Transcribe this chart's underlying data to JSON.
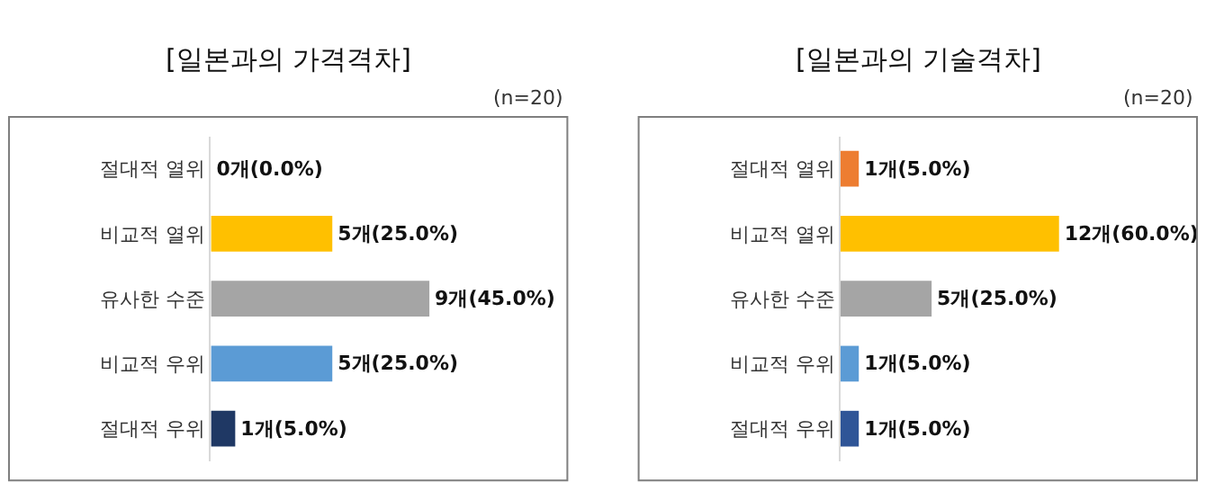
{
  "chart_data": [
    {
      "type": "bar",
      "orientation": "horizontal",
      "title": "[일본과의 가격격차]",
      "annotations": [
        "(n=20)"
      ],
      "categories": [
        "절대적 열위",
        "비교적 열위",
        "유사한 수준",
        "비교적 우위",
        "절대적 우위"
      ],
      "values": [
        0,
        5,
        9,
        5,
        1
      ],
      "colors": [
        "#ffffff",
        "#ffc000",
        "#a5a5a5",
        "#5b9bd5",
        "#1f3864"
      ],
      "value_labels": [
        "0개(0.0%)",
        "5개(25.0%)",
        "9개(45.0%)",
        "5개(25.0%)",
        "1개(5.0%)"
      ],
      "tick_labels": "y"
    },
    {
      "type": "bar",
      "orientation": "horizontal",
      "title": "[일본과의 기술격차]",
      "annotations": [
        "(n=20)"
      ],
      "categories": [
        "절대적 열위",
        "비교적 열위",
        "유사한 수준",
        "비교적 우위",
        "절대적 우위"
      ],
      "values": [
        1,
        12,
        5,
        1,
        1
      ],
      "colors": [
        "#ed7d31",
        "#ffc000",
        "#a5a5a5",
        "#5b9bd5",
        "#2f5597"
      ],
      "value_labels": [
        "1개(5.0%)",
        "12개(60.0%)",
        "5개(25.0%)",
        "1개(5.0%)",
        "1개(5.0%)"
      ],
      "tick_labels": "y"
    }
  ]
}
